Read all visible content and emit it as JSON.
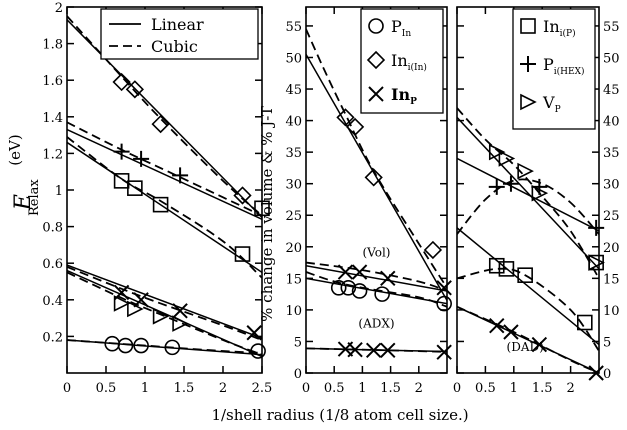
{
  "figure": {
    "xlabel": "1/shell radius (1/8 atom cell size.)"
  },
  "chart_data": [
    {
      "type": "scatter",
      "panel": "left",
      "ylabel": "E",
      "ylabel_sub": "Relax",
      "ylabel_unit": "(eV)",
      "xlim": [
        0,
        2.5
      ],
      "ylim": [
        0,
        2
      ],
      "xticks": [
        "0",
        "0.5",
        "1",
        "1.5",
        "2",
        "2.5"
      ],
      "xtick_values": [
        0,
        0.5,
        1,
        1.5,
        2,
        2.5
      ],
      "yticks": [
        "0.2",
        "0.4",
        "0.6",
        "0.8",
        "1",
        "1.2",
        "1.4",
        "1.6",
        "1.8",
        "2"
      ],
      "ytick_values": [
        0.2,
        0.4,
        0.6,
        0.8,
        1.0,
        1.2,
        1.4,
        1.6,
        1.8,
        2.0
      ],
      "ytick_side": "left",
      "legend": {
        "position": "top-right",
        "entries": [
          {
            "label": "Linear",
            "style": "solid"
          },
          {
            "label": "Cubic",
            "style": "dashed"
          }
        ]
      },
      "series": [
        {
          "marker": "diamond",
          "x": [
            0.7,
            0.87,
            1.2,
            2.25
          ],
          "y": [
            1.59,
            1.55,
            1.36,
            0.97
          ],
          "linear": [
            [
              0,
              1.93
            ],
            [
              2.5,
              0.85
            ]
          ],
          "cubic": [
            [
              0,
              1.95
            ],
            [
              0.7,
              1.62
            ],
            [
              1.2,
              1.39
            ],
            [
              2.0,
              1.05
            ],
            [
              2.5,
              0.86
            ]
          ]
        },
        {
          "marker": "plus",
          "x": [
            0.7,
            0.95,
            1.45
          ],
          "y": [
            1.21,
            1.17,
            1.08
          ],
          "linear": [
            [
              0,
              1.33
            ],
            [
              2.5,
              0.84
            ]
          ],
          "cubic": [
            [
              0,
              1.37
            ],
            [
              0.7,
              1.22
            ],
            [
              1.2,
              1.12
            ],
            [
              2.0,
              0.96
            ],
            [
              2.5,
              0.86
            ]
          ]
        },
        {
          "marker": "square",
          "x": [
            0.7,
            0.87,
            1.2,
            2.25,
            2.5
          ],
          "y": [
            1.05,
            1.01,
            0.92,
            0.65,
            0.9
          ],
          "linear": [
            [
              0,
              1.26
            ],
            [
              2.5,
              0.55
            ]
          ],
          "cubic": [
            [
              0,
              1.29
            ],
            [
              0.7,
              1.06
            ],
            [
              1.2,
              0.94
            ],
            [
              2.0,
              0.72
            ],
            [
              2.5,
              0.52
            ]
          ]
        },
        {
          "marker": "x",
          "x": [
            0.7,
            0.95,
            1.45,
            2.4
          ],
          "y": [
            0.44,
            0.4,
            0.34,
            0.22
          ],
          "linear": [
            [
              0,
              0.59
            ],
            [
              2.5,
              0.19
            ]
          ],
          "cubic": [
            [
              0,
              0.58
            ],
            [
              0.7,
              0.46
            ],
            [
              1.2,
              0.38
            ],
            [
              2.0,
              0.26
            ],
            [
              2.5,
              0.18
            ]
          ]
        },
        {
          "marker": "triangle",
          "x": [
            0.7,
            0.87,
            1.2,
            1.45
          ],
          "y": [
            0.38,
            0.35,
            0.31,
            0.27
          ],
          "linear": [
            [
              0,
              0.56
            ],
            [
              2.5,
              0.09
            ]
          ],
          "cubic": [
            [
              0,
              0.55
            ],
            [
              0.7,
              0.41
            ],
            [
              1.2,
              0.32
            ],
            [
              2.0,
              0.18
            ],
            [
              2.5,
              0.1
            ]
          ]
        },
        {
          "marker": "circle",
          "x": [
            0.58,
            0.75,
            0.95,
            1.35,
            2.45
          ],
          "y": [
            0.16,
            0.15,
            0.15,
            0.14,
            0.12
          ],
          "linear": [
            [
              0,
              0.18
            ],
            [
              2.5,
              0.1
            ]
          ],
          "cubic": [
            [
              0,
              0.18
            ],
            [
              1.0,
              0.15
            ],
            [
              2.0,
              0.12
            ],
            [
              2.5,
              0.11
            ]
          ]
        }
      ]
    },
    {
      "type": "scatter",
      "panel": "middle",
      "ylabel": "% change in volume & % J-T",
      "xlim": [
        0,
        2.5
      ],
      "ylim": [
        0,
        58
      ],
      "xticks": [
        "0",
        "0.5",
        "1",
        "1.5",
        "2"
      ],
      "xtick_values": [
        0,
        0.5,
        1,
        1.5,
        2
      ],
      "yticks": [
        "0",
        "5",
        "10",
        "15",
        "20",
        "25",
        "30",
        "35",
        "40",
        "45",
        "50",
        "55"
      ],
      "ytick_values": [
        0,
        5,
        10,
        15,
        20,
        25,
        30,
        35,
        40,
        45,
        50,
        55
      ],
      "ytick_side": "left",
      "legend": {
        "position": "top-right",
        "entries": [
          {
            "label": "P",
            "sub": "In",
            "marker": "circle"
          },
          {
            "label": "In",
            "sub": "i(In)",
            "marker": "diamond"
          },
          {
            "label": "In",
            "sub": "P",
            "marker": "x",
            "bold": true
          }
        ]
      },
      "annotations": [
        {
          "text": "(Vol)",
          "x": 1.25,
          "y": 18.5
        },
        {
          "text": "(ADX)",
          "x": 1.25,
          "y": 7.2
        }
      ],
      "series": [
        {
          "marker": "diamond",
          "x": [
            0.7,
            0.87,
            1.2,
            2.25
          ],
          "y": [
            40.5,
            39,
            31,
            19.5
          ],
          "linear": [
            [
              0,
              50.5
            ],
            [
              2.5,
              11.5
            ]
          ],
          "cubic": [
            [
              0,
              54.5
            ],
            [
              0.3,
              48.5
            ],
            [
              0.7,
              41
            ],
            [
              1.2,
              32
            ],
            [
              2.0,
              20.5
            ],
            [
              2.5,
              13.5
            ]
          ]
        },
        {
          "marker": "x",
          "x": [
            0.7,
            0.95,
            1.45,
            2.45
          ],
          "y": [
            16,
            16,
            15,
            13.5
          ],
          "linear": [
            [
              0,
              17
            ],
            [
              2.5,
              13
            ]
          ],
          "cubic": [
            [
              0,
              17.5
            ],
            [
              1.0,
              16.3
            ],
            [
              2.0,
              14.5
            ],
            [
              2.5,
              13
            ]
          ]
        },
        {
          "marker": "circle",
          "x": [
            0.58,
            0.75,
            0.95,
            1.35,
            2.45
          ],
          "y": [
            13.5,
            13.5,
            13,
            12.5,
            11
          ],
          "linear": [
            [
              0,
              15
            ],
            [
              2.5,
              11
            ]
          ],
          "cubic": [
            [
              0,
              16
            ],
            [
              0.5,
              14.5
            ],
            [
              1.0,
              13.5
            ],
            [
              2.0,
              12
            ],
            [
              2.5,
              10.5
            ]
          ]
        },
        {
          "marker": "x",
          "x": [
            0.7,
            0.87,
            1.2,
            1.45,
            2.45
          ],
          "y": [
            3.8,
            3.7,
            3.6,
            3.6,
            3.3
          ],
          "linear": [
            [
              0,
              3.9
            ],
            [
              2.5,
              3.4
            ]
          ],
          "cubic": [
            [
              0,
              3.9
            ],
            [
              1.2,
              3.65
            ],
            [
              2.5,
              3.35
            ]
          ]
        }
      ]
    },
    {
      "type": "scatter",
      "panel": "right",
      "xlim": [
        0,
        2.5
      ],
      "ylim": [
        0,
        58
      ],
      "xticks": [
        "0",
        "0.5",
        "1",
        "1.5",
        "2"
      ],
      "xtick_values": [
        0,
        0.5,
        1,
        1.5,
        2
      ],
      "yticks": [
        "0",
        "5",
        "10",
        "15",
        "20",
        "25",
        "30",
        "35",
        "40",
        "45",
        "50",
        "55"
      ],
      "ytick_values": [
        0,
        5,
        10,
        15,
        20,
        25,
        30,
        35,
        40,
        45,
        50,
        55
      ],
      "ytick_side": "right",
      "legend": {
        "position": "top-right",
        "entries": [
          {
            "label": "In",
            "sub": "i(P)",
            "marker": "square"
          },
          {
            "label": "P",
            "sub": "i(HEX)",
            "marker": "plus"
          },
          {
            "label": "V",
            "sub": "P",
            "marker": "triangle"
          }
        ]
      },
      "annotations": [
        {
          "text": "(DAD)",
          "x": 1.2,
          "y": 3.5
        }
      ],
      "series": [
        {
          "marker": "triangle",
          "x": [
            0.7,
            0.87,
            1.2,
            1.45,
            2.45
          ],
          "y": [
            35,
            34,
            32,
            28.5,
            17.5
          ],
          "linear": [
            [
              0,
              40.5
            ],
            [
              2.5,
              16.5
            ]
          ],
          "cubic": [
            [
              0,
              42
            ],
            [
              0.5,
              37
            ],
            [
              1.0,
              33
            ],
            [
              1.5,
              28
            ],
            [
              2.0,
              22.5
            ],
            [
              2.5,
              15
            ]
          ]
        },
        {
          "marker": "plus",
          "x": [
            0.7,
            0.95,
            1.45,
            2.45
          ],
          "y": [
            29.5,
            30,
            29.5,
            23
          ],
          "linear": [
            [
              0,
              34
            ],
            [
              2.5,
              22.5
            ]
          ],
          "cubic": [
            [
              0,
              22
            ],
            [
              0.5,
              27.5
            ],
            [
              1.0,
              30.5
            ],
            [
              1.5,
              30
            ],
            [
              2.0,
              27
            ],
            [
              2.5,
              22
            ]
          ]
        },
        {
          "marker": "square",
          "x": [
            0.7,
            0.87,
            1.2,
            2.25,
            2.45
          ],
          "y": [
            17,
            16.5,
            15.5,
            8,
            17.5
          ],
          "linear": [
            [
              0,
              23
            ],
            [
              2.5,
              4.5
            ]
          ],
          "cubic": [
            [
              0,
              15
            ],
            [
              0.7,
              16.5
            ],
            [
              1.2,
              15.5
            ],
            [
              2.0,
              10
            ],
            [
              2.5,
              3.5
            ]
          ]
        },
        {
          "marker": "x",
          "x": [
            0.7,
            0.95,
            1.45,
            2.45
          ],
          "y": [
            7.5,
            6.5,
            4.5,
            0
          ],
          "linear": [
            [
              0,
              10.5
            ],
            [
              2.5,
              0
            ]
          ],
          "cubic": [
            [
              0,
              10.5
            ],
            [
              1.0,
              6.5
            ],
            [
              2.0,
              2
            ],
            [
              2.5,
              0
            ]
          ]
        }
      ]
    }
  ]
}
